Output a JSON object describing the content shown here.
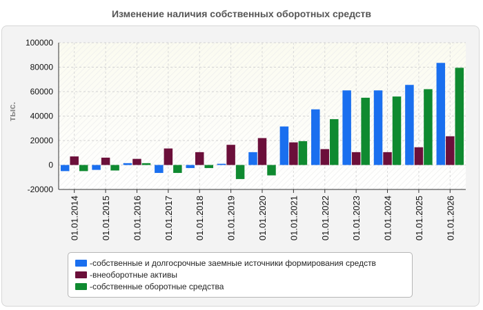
{
  "chart_data": {
    "type": "bar",
    "title": "Изменение наличия собственных оборотных средств",
    "ylabel": "тыс.",
    "xlabel": "",
    "ylim": [
      -20000,
      100000
    ],
    "yticks": [
      -20000,
      0,
      20000,
      40000,
      60000,
      80000,
      100000
    ],
    "grid": true,
    "legend_position": "bottom",
    "categories": [
      "01.01.2014",
      "01.01.2015",
      "01.01.2016",
      "01.01.2017",
      "01.01.2018",
      "01.01.2019",
      "01.01.2020",
      "01.01.2021",
      "01.01.2022",
      "01.01.2023",
      "01.01.2024",
      "01.01.2025",
      "01.01.2026"
    ],
    "series": [
      {
        "name": "собственные и долгосрочные заемные источники формирования средств",
        "color": "#1a6fef",
        "values": [
          -5000,
          -4000,
          1500,
          -6500,
          -2500,
          1000,
          10500,
          31500,
          45500,
          61000,
          61000,
          65500,
          83500
        ]
      },
      {
        "name": "внеоборотные активы",
        "color": "#6b0f3a",
        "values": [
          7000,
          6000,
          5000,
          13500,
          10500,
          16500,
          22000,
          18500,
          13000,
          10500,
          10500,
          14500,
          23500
        ]
      },
      {
        "name": "собственные оборотные средства",
        "color": "#0f8a30",
        "values": [
          -5000,
          -4500,
          1500,
          -6500,
          -2500,
          -11500,
          -8500,
          19500,
          37500,
          55000,
          56000,
          62000,
          79500
        ]
      }
    ]
  }
}
